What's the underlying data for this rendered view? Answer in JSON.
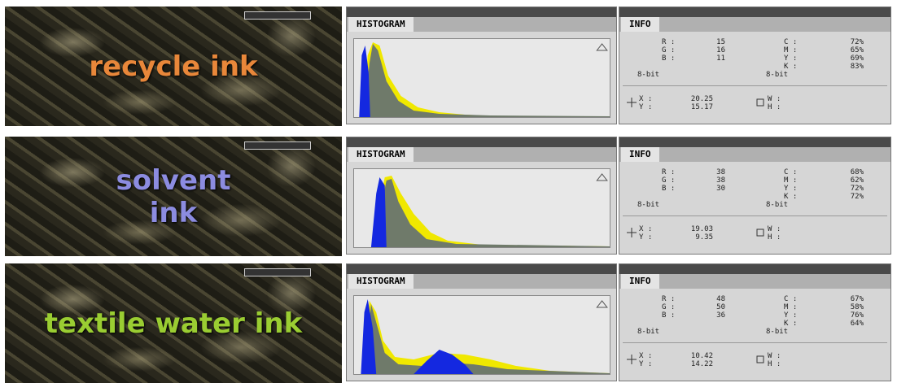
{
  "labels": {
    "histogram": "HISTOGRAM",
    "info": "INFO",
    "r": "R :",
    "g": "G :",
    "b": "B :",
    "c": "C :",
    "m": "M :",
    "y": "Y :",
    "k": "K :",
    "bit": "8-bit",
    "x": "X :",
    "w": "W :",
    "h": "H :"
  },
  "rows": [
    {
      "caption": "recycle ink",
      "r": "15",
      "g": "16",
      "b": "11",
      "c": "72%",
      "m": "65%",
      "y": "69%",
      "k": "83%",
      "x_pos": "20.25",
      "y_pos": "15.17"
    },
    {
      "caption": "solvent ink",
      "r": "38",
      "g": "38",
      "b": "30",
      "c": "68%",
      "m": "62%",
      "y": "72%",
      "k": "72%",
      "x_pos": "19.03",
      "y_pos": "9.35"
    },
    {
      "caption": "textile water ink",
      "r": "48",
      "g": "50",
      "b": "36",
      "c": "67%",
      "m": "58%",
      "y": "76%",
      "k": "64%",
      "x_pos": "10.42",
      "y_pos": "14.22"
    }
  ]
}
